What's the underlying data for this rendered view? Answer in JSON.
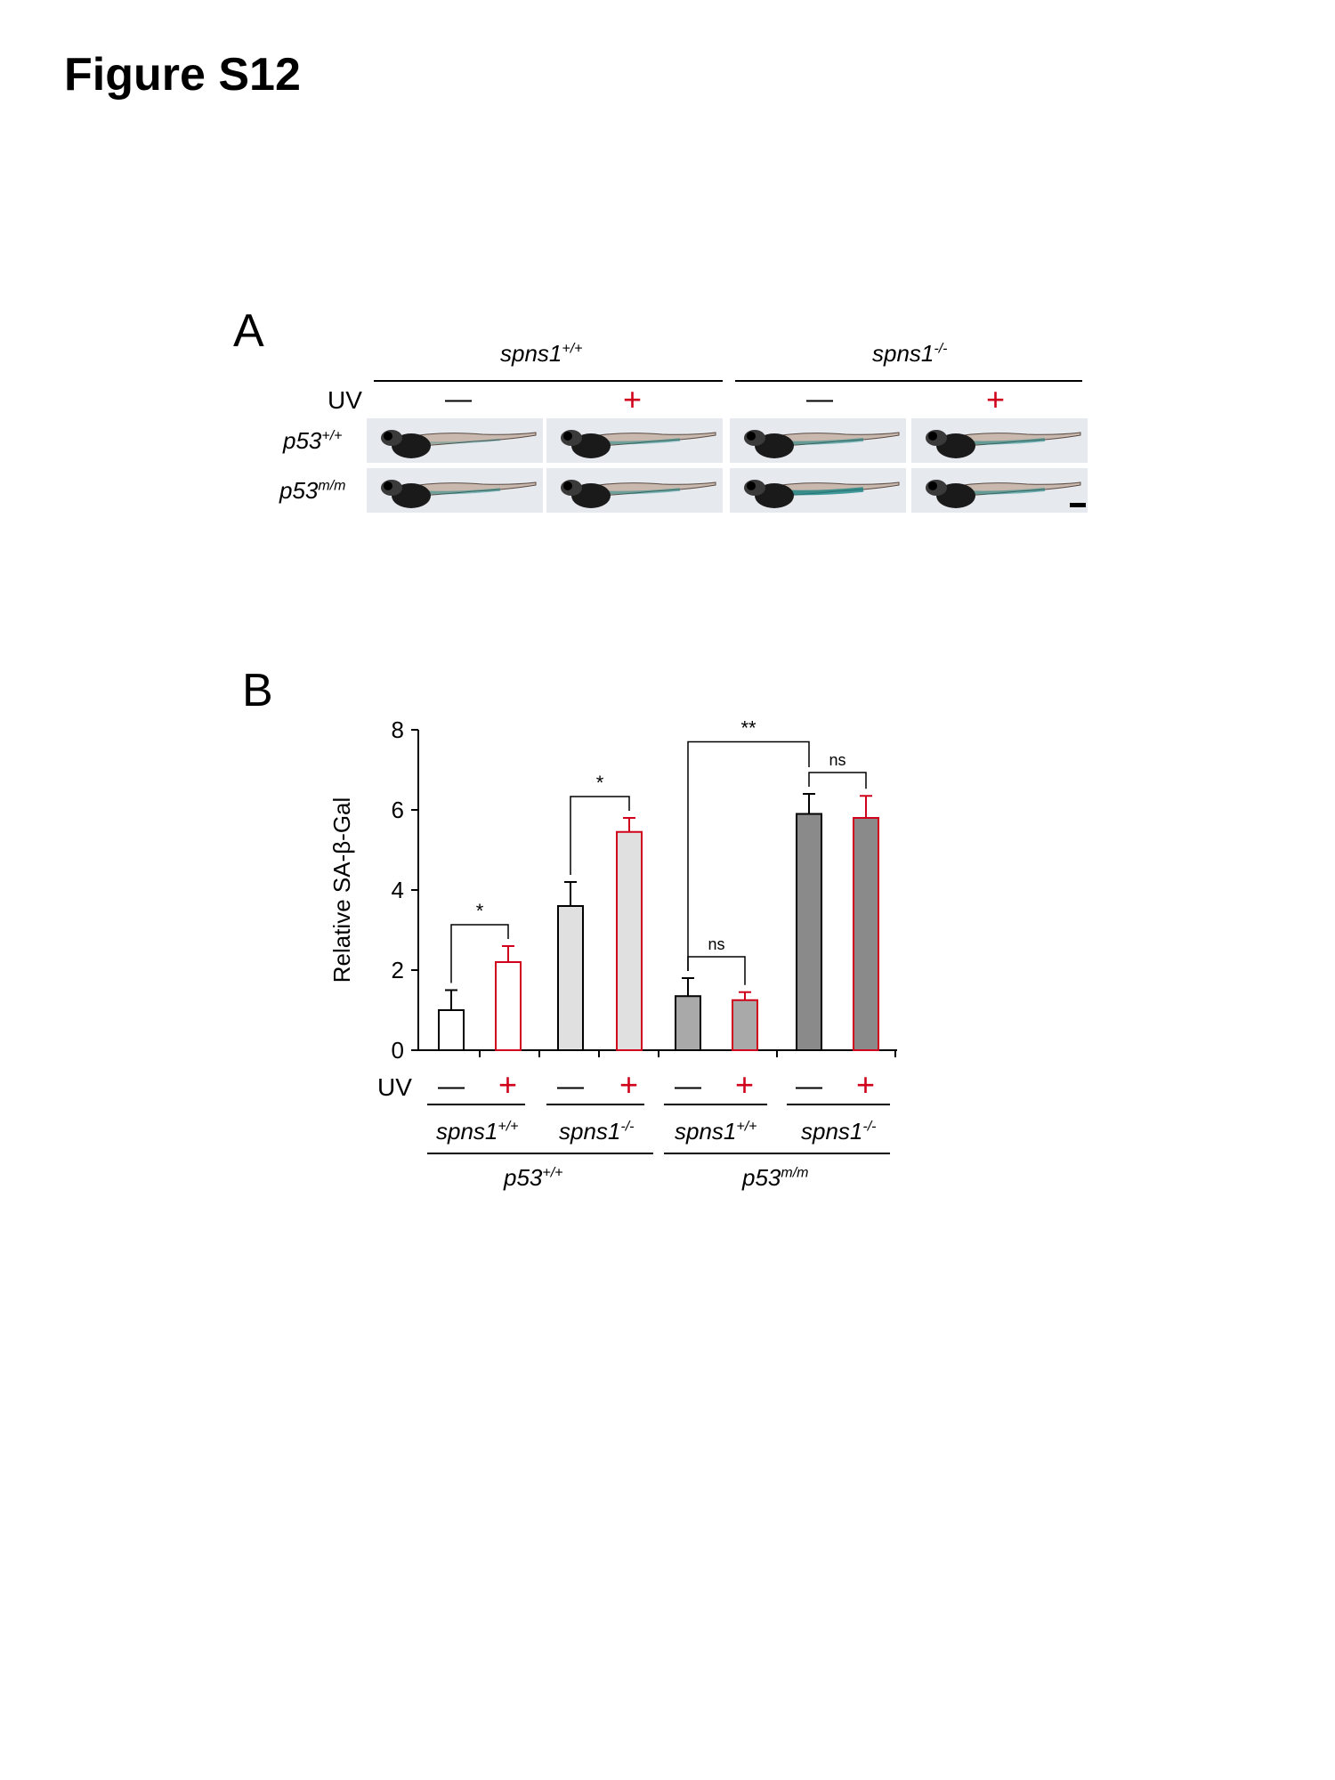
{
  "figure_title": "Figure S12",
  "panel_a": {
    "letter": "A",
    "uv_label": "UV",
    "col_groups": [
      {
        "base": "spns1",
        "sup": "+/+"
      },
      {
        "base": "spns1",
        "sup": "-/-"
      }
    ],
    "uv_signs": [
      "—",
      "+",
      "—",
      "+"
    ],
    "rows": [
      {
        "base": "p53",
        "sup": "+/+"
      },
      {
        "base": "p53",
        "sup": "m/m"
      }
    ],
    "stain_levels": [
      [
        0.1,
        0.4,
        0.5,
        0.5
      ],
      [
        0.4,
        0.4,
        0.9,
        0.5
      ]
    ]
  },
  "panel_b": {
    "letter": "B",
    "uv_label": "UV",
    "uv_signs": [
      "—",
      "+",
      "—",
      "+",
      "—",
      "+",
      "—",
      "+"
    ],
    "spns_labels": [
      {
        "base": "spns1",
        "sup": "+/+"
      },
      {
        "base": "spns1",
        "sup": "-/-"
      },
      {
        "base": "spns1",
        "sup": "+/+"
      },
      {
        "base": "spns1",
        "sup": "-/-"
      }
    ],
    "p53_labels": [
      {
        "base": "p53",
        "sup": "+/+"
      },
      {
        "base": "p53",
        "sup": "m/m"
      }
    ],
    "colors": {
      "black": "#000000",
      "red": "#d0021b",
      "light": "#e0e0e0",
      "mid": "#a9a9a9",
      "dark": "#8a8a8a"
    }
  },
  "chart_data": {
    "type": "bar",
    "ylabel": "Relative SA-β-Gal",
    "ylim": [
      0,
      8
    ],
    "yticks": [
      "0",
      "2",
      "4",
      "6",
      "8"
    ],
    "bars": [
      {
        "value": 1.0,
        "error": 0.5,
        "fill": "#ffffff",
        "edge": "#000000"
      },
      {
        "value": 2.2,
        "error": 0.4,
        "fill": "#ffffff",
        "edge": "#d0021b"
      },
      {
        "value": 3.6,
        "error": 0.6,
        "fill": "#e0e0e0",
        "edge": "#000000"
      },
      {
        "value": 5.45,
        "error": 0.35,
        "fill": "#e0e0e0",
        "edge": "#d0021b"
      },
      {
        "value": 1.35,
        "error": 0.45,
        "fill": "#a9a9a9",
        "edge": "#000000"
      },
      {
        "value": 1.25,
        "error": 0.2,
        "fill": "#a9a9a9",
        "edge": "#d0021b"
      },
      {
        "value": 5.9,
        "error": 0.5,
        "fill": "#8a8a8a",
        "edge": "#000000"
      },
      {
        "value": 5.8,
        "error": 0.55,
        "fill": "#8a8a8a",
        "edge": "#d0021b"
      }
    ],
    "significance": [
      {
        "label": "*",
        "from_bar": 0,
        "to_bar": 1
      },
      {
        "label": "*",
        "from_bar": 2,
        "to_bar": 3
      },
      {
        "label": "ns",
        "from_bar": 4,
        "to_bar": 5
      },
      {
        "label": "ns",
        "from_bar": 6,
        "to_bar": 7
      },
      {
        "label": "**",
        "from_bar": 4,
        "to_bar": 6
      }
    ]
  }
}
